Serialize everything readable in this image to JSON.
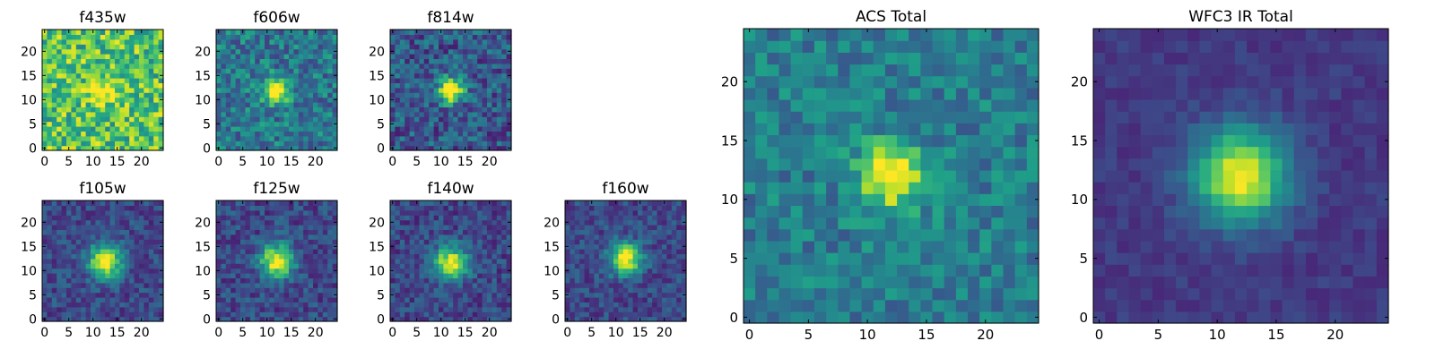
{
  "chart_data": [
    {
      "type": "heatmap",
      "title": "f435w",
      "colormap": "viridis",
      "xlim": [
        -0.5,
        24.5
      ],
      "ylim": [
        -0.5,
        24.5
      ],
      "xticks": [
        0,
        5,
        10,
        15,
        20
      ],
      "yticks": [
        0,
        5,
        10,
        15,
        20
      ],
      "peak": [
        12,
        12
      ],
      "sigma": 2.0,
      "amplitude": 0.35,
      "background": 0.72,
      "noise": 0.26
    },
    {
      "type": "heatmap",
      "title": "f606w",
      "colormap": "viridis",
      "xlim": [
        -0.5,
        24.5
      ],
      "ylim": [
        -0.5,
        24.5
      ],
      "xticks": [
        0,
        5,
        10,
        15,
        20
      ],
      "yticks": [
        0,
        5,
        10,
        15,
        20
      ],
      "peak": [
        12,
        12
      ],
      "sigma": 1.8,
      "amplitude": 0.75,
      "background": 0.4,
      "noise": 0.2
    },
    {
      "type": "heatmap",
      "title": "f814w",
      "colormap": "viridis",
      "xlim": [
        -0.5,
        24.5
      ],
      "ylim": [
        -0.5,
        24.5
      ],
      "xticks": [
        0,
        5,
        10,
        15,
        20
      ],
      "yticks": [
        0,
        5,
        10,
        15,
        20
      ],
      "peak": [
        12,
        12
      ],
      "sigma": 1.8,
      "amplitude": 0.85,
      "background": 0.28,
      "noise": 0.2
    },
    {
      "type": "heatmap",
      "title": "f105w",
      "colormap": "viridis",
      "xlim": [
        -0.5,
        24.5
      ],
      "ylim": [
        -0.5,
        24.5
      ],
      "xticks": [
        0,
        5,
        10,
        15,
        20
      ],
      "yticks": [
        0,
        5,
        10,
        15,
        20
      ],
      "peak": [
        12.5,
        12
      ],
      "sigma": 2.4,
      "amplitude": 0.8,
      "background": 0.22,
      "noise": 0.13
    },
    {
      "type": "heatmap",
      "title": "f125w",
      "colormap": "viridis",
      "xlim": [
        -0.5,
        24.5
      ],
      "ylim": [
        -0.5,
        24.5
      ],
      "xticks": [
        0,
        5,
        10,
        15,
        20
      ],
      "yticks": [
        0,
        5,
        10,
        15,
        20
      ],
      "peak": [
        12,
        12
      ],
      "sigma": 2.4,
      "amplitude": 0.8,
      "background": 0.22,
      "noise": 0.14
    },
    {
      "type": "heatmap",
      "title": "f140w",
      "colormap": "viridis",
      "xlim": [
        -0.5,
        24.5
      ],
      "ylim": [
        -0.5,
        24.5
      ],
      "xticks": [
        0,
        5,
        10,
        15,
        20
      ],
      "yticks": [
        0,
        5,
        10,
        15,
        20
      ],
      "peak": [
        12,
        11.5
      ],
      "sigma": 2.4,
      "amplitude": 0.78,
      "background": 0.22,
      "noise": 0.14
    },
    {
      "type": "heatmap",
      "title": "f160w",
      "colormap": "viridis",
      "xlim": [
        -0.5,
        24.5
      ],
      "ylim": [
        -0.5,
        24.5
      ],
      "xticks": [
        0,
        5,
        10,
        15,
        20
      ],
      "yticks": [
        0,
        5,
        10,
        15,
        20
      ],
      "peak": [
        12,
        12.5
      ],
      "sigma": 2.3,
      "amplitude": 0.8,
      "background": 0.22,
      "noise": 0.13
    },
    {
      "type": "heatmap",
      "title": "ACS Total",
      "colormap": "viridis",
      "xlim": [
        -0.5,
        24.5
      ],
      "ylim": [
        -0.5,
        24.5
      ],
      "xticks": [
        0,
        5,
        10,
        15,
        20
      ],
      "yticks": [
        0,
        5,
        10,
        15,
        20
      ],
      "peak": [
        12,
        12
      ],
      "sigma": 1.9,
      "amplitude": 0.65,
      "background": 0.42,
      "noise": 0.15
    },
    {
      "type": "heatmap",
      "title": "WFC3 IR Total",
      "colormap": "viridis",
      "xlim": [
        -0.5,
        24.5
      ],
      "ylim": [
        -0.5,
        24.5
      ],
      "xticks": [
        0,
        5,
        10,
        15,
        20
      ],
      "yticks": [
        0,
        5,
        10,
        15,
        20
      ],
      "peak": [
        12,
        12
      ],
      "sigma": 2.8,
      "amplitude": 0.82,
      "background": 0.17,
      "noise": 0.06
    }
  ],
  "colors": {
    "viridis": [
      "#440154",
      "#482878",
      "#3e4989",
      "#31688e",
      "#26828e",
      "#1f9e89",
      "#35b779",
      "#6ece58",
      "#b5de2b",
      "#fde725"
    ],
    "axis": "#000000",
    "background": "#ffffff"
  }
}
